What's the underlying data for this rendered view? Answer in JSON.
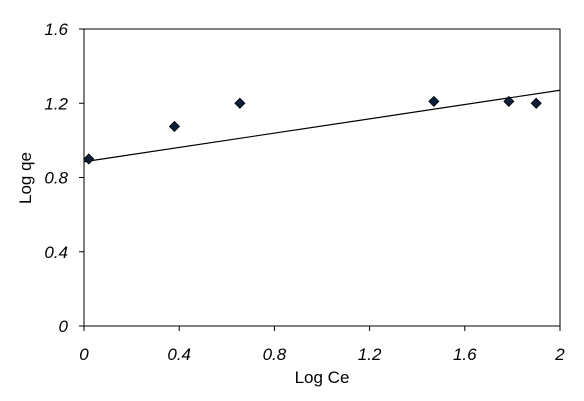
{
  "chart_data": {
    "type": "scatter",
    "title": "",
    "xlabel": "Log Ce",
    "ylabel": "Log qe",
    "xlim": [
      0,
      2
    ],
    "ylim": [
      0,
      1.6
    ],
    "x_ticks": [
      "0",
      "0.4",
      "0.8",
      "1.2",
      "1.6",
      "2"
    ],
    "y_ticks": [
      "0",
      "0.4",
      "0.8",
      "1.2",
      "1.6"
    ],
    "grid": false,
    "legend": "none",
    "series": [
      {
        "marker": "diamond",
        "color": "#0b1f3a",
        "points": [
          {
            "x": 0.02,
            "y": 0.9
          },
          {
            "x": 0.38,
            "y": 1.075
          },
          {
            "x": 0.655,
            "y": 1.2
          },
          {
            "x": 1.47,
            "y": 1.21
          },
          {
            "x": 1.785,
            "y": 1.21
          },
          {
            "x": 1.9,
            "y": 1.2
          }
        ]
      }
    ],
    "trendline": {
      "type": "linear",
      "color": "#000000",
      "start": {
        "x": 0,
        "y": 0.885
      },
      "end": {
        "x": 2,
        "y": 1.27
      }
    }
  }
}
